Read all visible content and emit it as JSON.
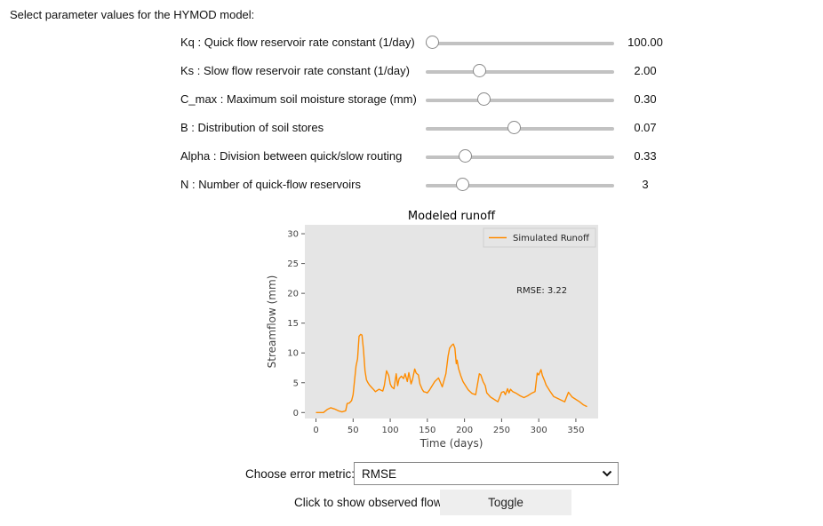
{
  "heading": "Select parameter values for the HYMOD model:",
  "parameters": [
    {
      "label": "Kq : Quick flow reservoir rate constant (1/day)",
      "value": "100.00",
      "level": 0.04
    },
    {
      "label": "Ks : Slow flow reservoir rate constant (1/day)",
      "value": "2.00",
      "level": 0.29
    },
    {
      "label": "C_max : Maximum soil moisture storage (mm)",
      "value": "0.30",
      "level": 0.31
    },
    {
      "label": "B : Distribution of soil stores",
      "value": "0.07",
      "level": 0.47
    },
    {
      "label": "Alpha : Division between quick/slow routing",
      "value": "0.33",
      "level": 0.21
    },
    {
      "label": "N : Number of quick-flow reservoirs",
      "value": "3",
      "level": 0.2
    }
  ],
  "chart_data": {
    "type": "line",
    "title": "Modeled runoff",
    "xlabel": "Time (days)",
    "ylabel": "Streamflow (mm)",
    "xlim": [
      -15,
      380
    ],
    "ylim": [
      -1,
      31.5
    ],
    "xticks": [
      0,
      50,
      100,
      150,
      200,
      250,
      300,
      350
    ],
    "yticks": [
      0,
      5,
      10,
      15,
      20,
      25,
      30
    ],
    "grid": false,
    "legend_position": "top-right",
    "annotation": "RMSE: 3.22",
    "series": [
      {
        "name": "Simulated Runoff",
        "color": "#ff8c00",
        "x": [
          0,
          5,
          10,
          15,
          20,
          25,
          30,
          35,
          40,
          42,
          45,
          48,
          50,
          52,
          54,
          56,
          58,
          60,
          62,
          64,
          66,
          68,
          70,
          72,
          75,
          78,
          80,
          85,
          90,
          92,
          95,
          98,
          100,
          102,
          105,
          108,
          110,
          112,
          115,
          118,
          120,
          123,
          125,
          128,
          130,
          133,
          135,
          138,
          140,
          143,
          145,
          148,
          150,
          153,
          155,
          160,
          165,
          170,
          175,
          178,
          180,
          183,
          185,
          187,
          189,
          190,
          192,
          195,
          198,
          200,
          205,
          210,
          215,
          220,
          222,
          225,
          228,
          230,
          235,
          240,
          245,
          250,
          253,
          255,
          258,
          260,
          262,
          265,
          270,
          275,
          280,
          285,
          290,
          295,
          298,
          300,
          303,
          305,
          308,
          310,
          315,
          320,
          325,
          330,
          335,
          340,
          345,
          350,
          355,
          360,
          365
        ],
        "y": [
          0,
          0,
          0,
          0.5,
          0.8,
          0.6,
          0.3,
          0.1,
          0.3,
          1.5,
          1.6,
          2,
          3,
          5.5,
          7.8,
          9,
          12.8,
          13.1,
          13,
          10.5,
          7,
          5.5,
          5,
          4.6,
          4.2,
          3.8,
          3.5,
          3.9,
          3.6,
          4.5,
          7,
          6.2,
          4.8,
          4.3,
          4,
          6.5,
          4.5,
          5.7,
          6.1,
          5.7,
          6.5,
          5.2,
          6.7,
          4.8,
          5.5,
          7.3,
          6.6,
          6.3,
          4.8,
          3.9,
          3.5,
          3.4,
          3.3,
          3.8,
          4.2,
          5.2,
          5.8,
          4.3,
          6.5,
          9.5,
          10.8,
          11.3,
          11.5,
          10.8,
          8.2,
          8.8,
          7.4,
          6.2,
          5.2,
          4.8,
          3.8,
          3.2,
          3,
          6.5,
          6.3,
          5.2,
          4.5,
          3.3,
          2.6,
          2.2,
          1.8,
          3.4,
          3.5,
          3,
          4,
          3.3,
          3.9,
          3.5,
          3.2,
          2.8,
          2.5,
          2.8,
          3.2,
          3.5,
          6.6,
          6.3,
          7.2,
          6.2,
          5.3,
          4.6,
          3.6,
          2.7,
          2.4,
          2.1,
          1.8,
          3.4,
          2.6,
          2.2,
          1.8,
          1.3,
          1
        ]
      }
    ]
  },
  "metric": {
    "label": "Choose error metric:",
    "selected": "RMSE"
  },
  "toggle": {
    "label": "Click to show observed flow",
    "button": "Toggle"
  }
}
